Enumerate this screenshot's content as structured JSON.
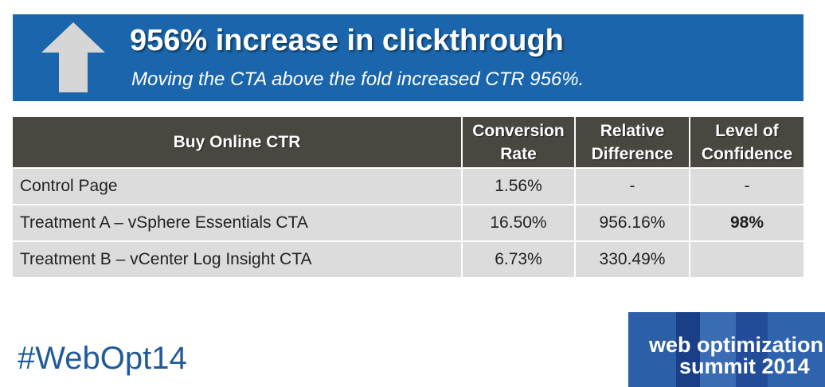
{
  "header": {
    "title": "956% increase in clickthrough",
    "subtitle": "Moving the CTA above the fold increased CTR 956%."
  },
  "table": {
    "columns": [
      "Buy Online CTR",
      "Conversion Rate",
      "Relative Difference",
      "Level of Confidence"
    ],
    "rows": [
      {
        "label": "Control Page",
        "conversion_rate": "1.56%",
        "relative_difference": "-",
        "confidence": "-"
      },
      {
        "label": "Treatment A – vSphere Essentials CTA",
        "conversion_rate": "16.50%",
        "relative_difference": "956.16%",
        "confidence": "98%"
      },
      {
        "label": "Treatment B – vCenter Log Insight CTA",
        "conversion_rate": "6.73%",
        "relative_difference": "330.49%",
        "confidence": ""
      }
    ]
  },
  "footer": {
    "hashtag": "#WebOpt14",
    "logo_line1": "web optimization",
    "logo_line2": "summit 2014"
  },
  "colors": {
    "banner": "#1a65ab",
    "table_header": "#4a4640",
    "table_cell": "#dcdcdc",
    "confidence_highlight": "#27a744",
    "logo": "#1f4f9a"
  }
}
